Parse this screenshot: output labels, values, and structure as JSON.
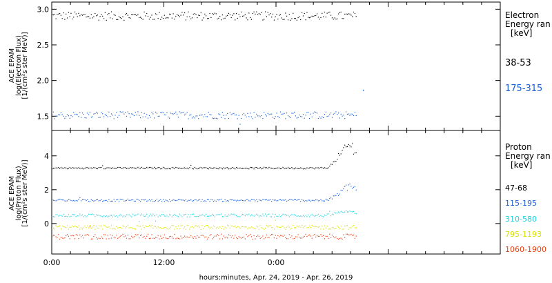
{
  "chart_data": [
    {
      "type": "scatter",
      "ylabel_lines": [
        "ACE EPAM",
        "log(Electron Flux)",
        "[1/(cm²s ster MeV)]"
      ],
      "legend_title_lines": [
        "Electron",
        "Energy ran"
      ],
      "legend_unit": "[keV]",
      "ylim": [
        1.3,
        3.1
      ],
      "yticks": [
        "1.5",
        "2.0",
        "2.5",
        "3.0"
      ],
      "ytick_values": [
        1.5,
        2.0,
        2.5,
        3.0
      ],
      "series": [
        {
          "name": "38-53",
          "color": "#000000",
          "base": 2.91,
          "noise": 0.06,
          "spikes": []
        },
        {
          "name": "175-315",
          "color": "#1a5fd6",
          "base": 1.52,
          "noise": 0.05,
          "spikes": [
            [
              33.3,
              1.87
            ]
          ]
        }
      ]
    },
    {
      "type": "scatter",
      "ylabel_lines": [
        "ACE EPAM",
        "log(Proton Flux)",
        "[1/(cm²s ster MeV)]"
      ],
      "legend_title_lines": [
        "Proton",
        "Energy ran"
      ],
      "legend_unit": "[keV]",
      "ylim": [
        -1.8,
        5.5
      ],
      "yticks": [
        "0",
        "2",
        "4"
      ],
      "ytick_values": [
        0,
        2,
        4
      ],
      "series": [
        {
          "name": "47-68",
          "color": "#000000",
          "base": 3.3,
          "noise": 0.05,
          "spikes": [],
          "peak": 1.5
        },
        {
          "name": "115-195",
          "color": "#1a5fd6",
          "base": 1.4,
          "noise": 0.07,
          "spikes": [],
          "peak": 0.9
        },
        {
          "name": "310-580",
          "color": "#20d0e0",
          "base": 0.5,
          "noise": 0.09,
          "spikes": [],
          "peak": 0.25
        },
        {
          "name": "795-1193",
          "color": "#d8e000",
          "base": -0.2,
          "noise": 0.12,
          "spikes": [],
          "peak": 0.0
        },
        {
          "name": "1060-1900",
          "color": "#e84010",
          "base": -0.75,
          "noise": 0.15,
          "spikes": [],
          "peak": 0.0
        }
      ]
    }
  ],
  "x_axis": {
    "range_hours": [
      0,
      48
    ],
    "data_end_hours": 32.6,
    "ticks": [
      {
        "hour": 0,
        "label": "0:00"
      },
      {
        "hour": 12,
        "label": "12:00"
      },
      {
        "hour": 24,
        "label": "0:00"
      }
    ],
    "label": "hours:minutes, Apr. 24, 2019 - Apr. 26, 2019"
  }
}
